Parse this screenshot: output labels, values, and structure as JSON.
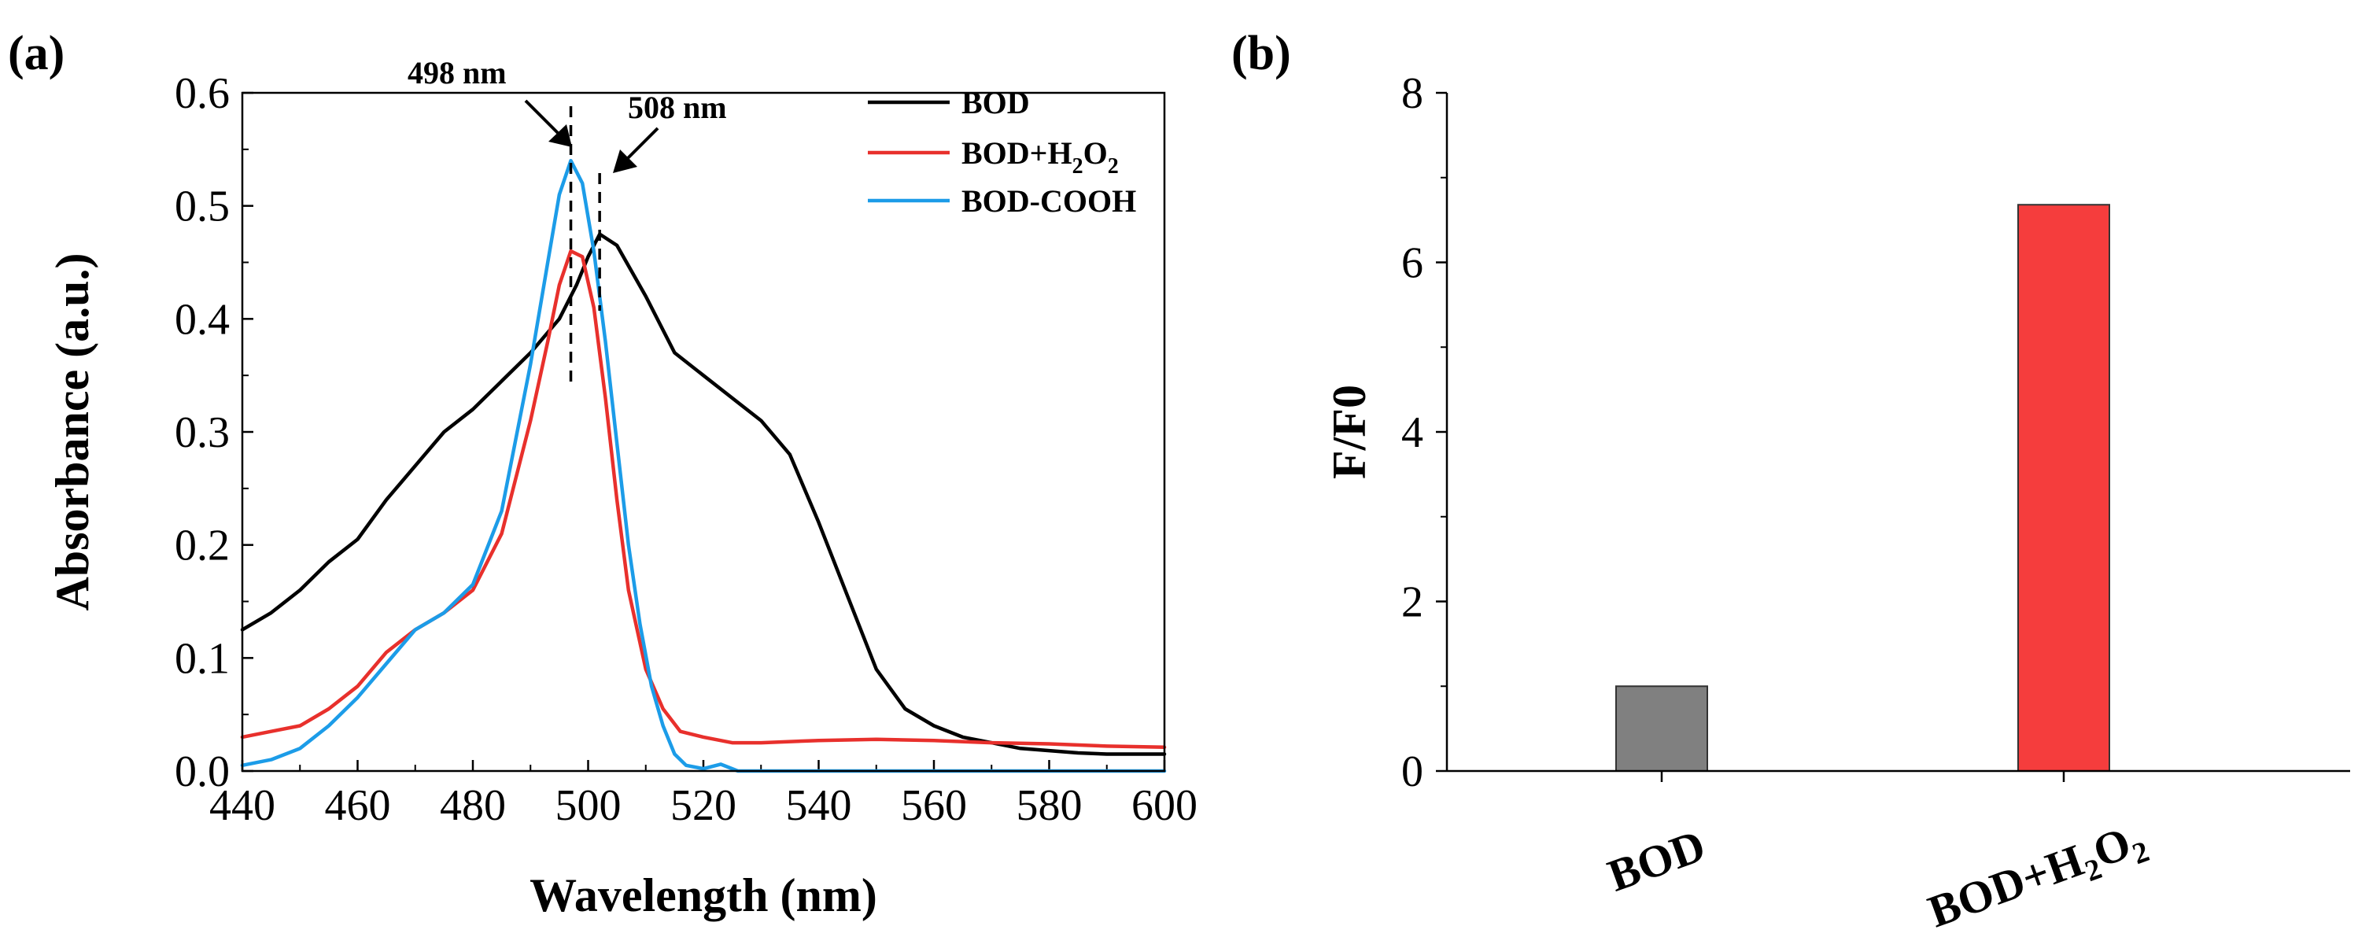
{
  "panels": {
    "a": {
      "label": "(a)"
    },
    "b": {
      "label": "(b)"
    }
  },
  "chart_data": [
    {
      "id": "panel-a",
      "type": "line",
      "xlabel": "Wavelength (nm)",
      "ylabel": "Absorbance (a.u.)",
      "xlim": [
        440,
        600
      ],
      "ylim": [
        0,
        0.6
      ],
      "xticks": [
        "440",
        "460",
        "480",
        "500",
        "520",
        "540",
        "560",
        "580",
        "600"
      ],
      "yticks": [
        "0.0",
        "0.1",
        "0.2",
        "0.3",
        "0.4",
        "0.5",
        "0.6"
      ],
      "legend_position": "top-right",
      "legend": [
        {
          "text": "BOD",
          "sub": ""
        },
        {
          "text": "BOD+H",
          "sub": "2",
          "text2": "O",
          "sub2": "2"
        },
        {
          "text": "BOD-COOH",
          "sub": ""
        }
      ],
      "annotations": [
        {
          "text": "498 nm",
          "x": 497
        },
        {
          "text": "508 nm",
          "x": 502
        }
      ],
      "series": [
        {
          "name": "BOD",
          "color": "#000000",
          "x": [
            440,
            445,
            450,
            455,
            460,
            465,
            470,
            475,
            480,
            485,
            490,
            495,
            498,
            500,
            502,
            505,
            510,
            515,
            520,
            525,
            530,
            535,
            540,
            545,
            550,
            555,
            560,
            565,
            570,
            575,
            580,
            585,
            590,
            595,
            600
          ],
          "y": [
            0.125,
            0.14,
            0.16,
            0.185,
            0.205,
            0.24,
            0.27,
            0.3,
            0.32,
            0.345,
            0.37,
            0.4,
            0.43,
            0.455,
            0.475,
            0.465,
            0.42,
            0.37,
            0.35,
            0.33,
            0.31,
            0.28,
            0.22,
            0.155,
            0.09,
            0.055,
            0.04,
            0.03,
            0.025,
            0.02,
            0.018,
            0.016,
            0.015,
            0.015,
            0.015
          ]
        },
        {
          "name": "BOD+H2O2",
          "color": "#E8302C",
          "x": [
            440,
            445,
            450,
            455,
            460,
            465,
            470,
            475,
            480,
            485,
            490,
            493,
            495,
            497,
            499,
            501,
            503,
            505,
            507,
            510,
            513,
            516,
            520,
            525,
            530,
            540,
            550,
            560,
            570,
            580,
            590,
            600
          ],
          "y": [
            0.03,
            0.035,
            0.04,
            0.055,
            0.075,
            0.105,
            0.125,
            0.14,
            0.16,
            0.21,
            0.31,
            0.38,
            0.43,
            0.46,
            0.455,
            0.41,
            0.33,
            0.24,
            0.16,
            0.09,
            0.055,
            0.035,
            0.03,
            0.025,
            0.025,
            0.027,
            0.028,
            0.027,
            0.025,
            0.024,
            0.022,
            0.021
          ]
        },
        {
          "name": "BOD-COOH",
          "color": "#1C9CE8",
          "x": [
            440,
            445,
            450,
            455,
            460,
            465,
            470,
            475,
            480,
            485,
            490,
            493,
            495,
            497,
            499,
            501,
            503,
            505,
            507,
            509,
            511,
            513,
            515,
            517,
            520,
            523,
            526,
            530,
            540,
            550,
            560,
            570,
            580,
            590,
            600
          ],
          "y": [
            0.005,
            0.01,
            0.02,
            0.04,
            0.065,
            0.095,
            0.125,
            0.14,
            0.165,
            0.23,
            0.36,
            0.45,
            0.51,
            0.54,
            0.52,
            0.46,
            0.38,
            0.29,
            0.2,
            0.13,
            0.075,
            0.04,
            0.015,
            0.005,
            0.002,
            0.006,
            0.0,
            0.0,
            0.0,
            0.0,
            0.0,
            0.0,
            0.0,
            0.0,
            0.0
          ]
        }
      ]
    },
    {
      "id": "panel-b",
      "type": "bar",
      "xlabel": "",
      "ylabel": "F/F0",
      "ylim": [
        0,
        8
      ],
      "yticks": [
        "0",
        "2",
        "4",
        "6",
        "8"
      ],
      "categories": [
        {
          "text": "BOD",
          "sub": ""
        },
        {
          "text": "BOD+H",
          "sub": "2",
          "text2": "O",
          "sub2": "2"
        }
      ],
      "values": [
        1.0,
        6.68
      ],
      "colors": [
        "#808080",
        "#F53D3D"
      ]
    }
  ]
}
